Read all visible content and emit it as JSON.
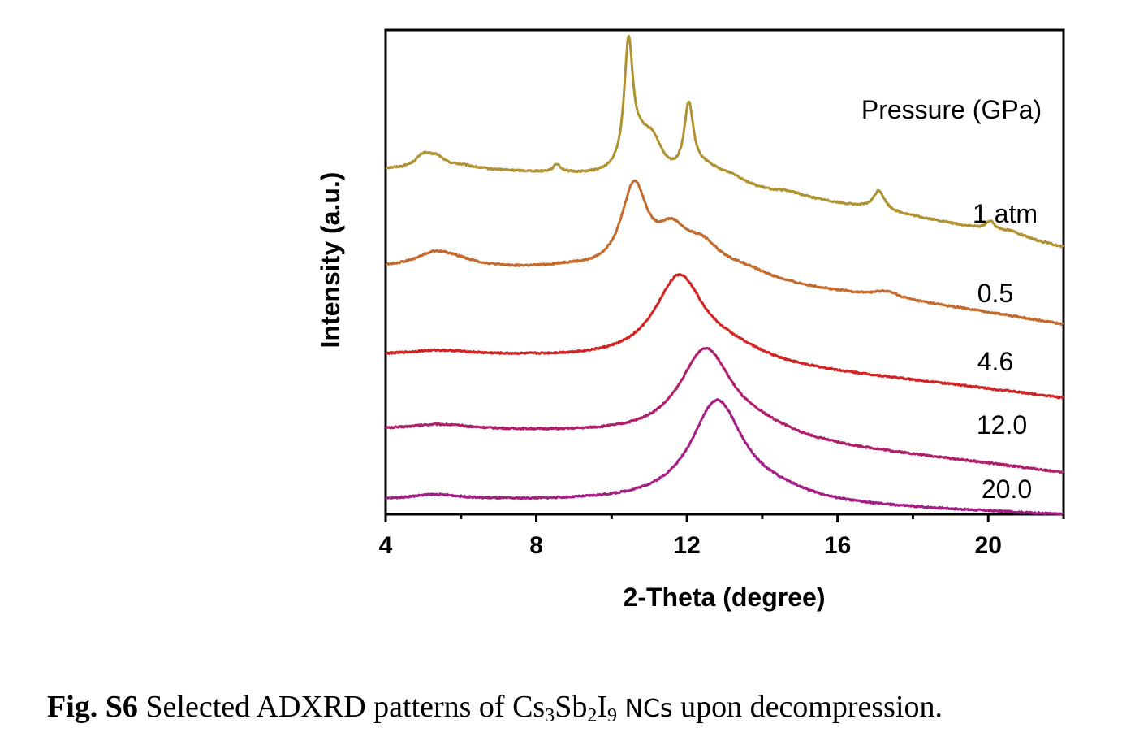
{
  "chart_data": {
    "type": "line",
    "xlabel": "2-Theta (degree)",
    "ylabel": "Intensity (a.u.)",
    "xlim": [
      4,
      22
    ],
    "xticks": [
      4,
      8,
      12,
      16,
      20
    ],
    "y_ticks_shown": false,
    "grid": false,
    "legend_title": "Pressure (GPa)",
    "legend_placement": "right",
    "series": [
      {
        "name": "1 atm",
        "color": "#b09230",
        "offset": 3.6,
        "baseline": [
          0.32,
          -0.0055
        ],
        "peaks": [
          [
            5.0,
            0.14,
            0.25
          ],
          [
            5.35,
            0.11,
            0.25
          ],
          [
            6.0,
            0.04,
            0.5
          ],
          [
            8.55,
            0.09,
            0.12
          ],
          [
            10.45,
            1.38,
            0.14
          ],
          [
            10.75,
            0.3,
            0.35
          ],
          [
            11.1,
            0.32,
            0.3
          ],
          [
            12.05,
            0.78,
            0.15
          ],
          [
            12.5,
            0.16,
            0.5
          ],
          [
            13.2,
            0.1,
            0.5
          ],
          [
            14.7,
            0.04,
            0.5
          ],
          [
            17.1,
            0.22,
            0.18
          ],
          [
            20.05,
            0.1,
            0.15
          ],
          [
            20.6,
            0.05,
            0.4
          ]
        ]
      },
      {
        "name": "0.5",
        "color": "#c46a2c",
        "offset": 2.55,
        "baseline": [
          0.25,
          -0.004
        ],
        "peaks": [
          [
            5.3,
            0.15,
            0.6
          ],
          [
            5.9,
            0.06,
            0.6
          ],
          [
            8.8,
            0.03,
            0.6
          ],
          [
            10.6,
            0.95,
            0.42
          ],
          [
            11.6,
            0.4,
            0.5
          ],
          [
            12.4,
            0.3,
            0.6
          ],
          [
            13.5,
            0.12,
            0.9
          ],
          [
            17.3,
            0.07,
            0.4
          ]
        ]
      },
      {
        "name": "4.6",
        "color": "#d42323",
        "offset": 1.65,
        "baseline": [
          0.15,
          -0.003
        ],
        "peaks": [
          [
            5.4,
            0.05,
            1.0
          ],
          [
            11.8,
            0.95,
            0.8
          ],
          [
            13.2,
            0.15,
            1.2
          ]
        ]
      },
      {
        "name": "12.0",
        "color": "#b0206a",
        "offset": 0.85,
        "baseline": [
          0.1,
          -0.003
        ],
        "peaks": [
          [
            5.4,
            0.06,
            1.0
          ],
          [
            12.5,
            1.0,
            0.85
          ],
          [
            14.0,
            0.12,
            1.2
          ]
        ]
      },
      {
        "name": "20.0",
        "color": "#a41e86",
        "offset": 0.1,
        "baseline": [
          0.05,
          -0.001
        ],
        "peaks": [
          [
            5.3,
            0.06,
            0.9
          ],
          [
            12.8,
            1.15,
            0.85
          ],
          [
            14.4,
            0.1,
            1.2
          ]
        ]
      }
    ]
  },
  "caption": {
    "label": "Fig. S6",
    "text_before": " Selected ADXRD patterns of Cs",
    "sub1": "3",
    "text_mid1": "Sb",
    "sub2": "2",
    "text_mid2": "I",
    "sub3": "9",
    "text_mono": " NCs",
    "text_after": " upon decompression."
  }
}
